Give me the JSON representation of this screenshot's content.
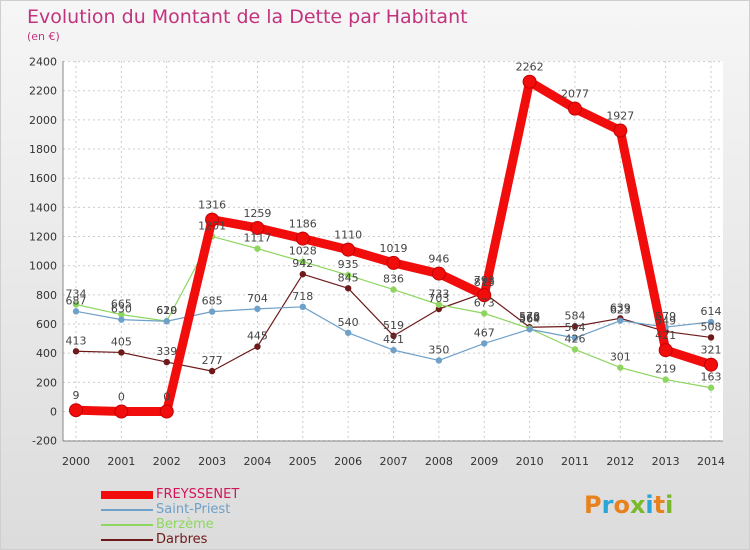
{
  "header": {
    "title": "Evolution du Montant de la Dette par Habitant",
    "subtitle": "(en €)"
  },
  "logo": {
    "text": "Proxiti",
    "colors": [
      "#e8821e",
      "#2aa5d8",
      "#e8821e",
      "#7ab929",
      "#2aa5d8",
      "#e8821e",
      "#7ab929"
    ]
  },
  "chart_data": {
    "type": "line",
    "title": "Evolution du Montant de la Dette par Habitant",
    "subtitle": "(en €)",
    "xlabel": "",
    "ylabel": "",
    "categories": [
      "2000",
      "2001",
      "2002",
      "2003",
      "2004",
      "2005",
      "2006",
      "2007",
      "2008",
      "2009",
      "2010",
      "2011",
      "2012",
      "2013",
      "2014"
    ],
    "ylim": [
      -200,
      2400
    ],
    "yticks": [
      -200,
      0,
      200,
      400,
      600,
      800,
      1000,
      1200,
      1400,
      1600,
      1800,
      2000,
      2200,
      2400
    ],
    "grid": true,
    "legend": "bottom-left",
    "series": [
      {
        "name": "Darbres",
        "color": "#6e1a1a",
        "values": [
          413,
          405,
          339,
          277,
          445,
          942,
          845,
          519,
          703,
          813,
          578,
          584,
          639,
          549,
          508
        ]
      },
      {
        "name": "Berzème",
        "color": "#8ed65f",
        "values": [
          734,
          665,
          620,
          1201,
          1117,
          1028,
          935,
          836,
          733,
          673,
          569,
          426,
          301,
          219,
          163
        ]
      },
      {
        "name": "Saint-Priest",
        "color": "#6fa0c8",
        "values": [
          687,
          630,
          619,
          685,
          704,
          718,
          540,
          421,
          350,
          467,
          564,
          504,
          623,
          579,
          614
        ]
      },
      {
        "name": "FREYSSENET",
        "color": "#f20d0d",
        "values": [
          9,
          0,
          0,
          1316,
          1259,
          1186,
          1110,
          1019,
          946,
          798,
          2262,
          2077,
          1927,
          421,
          321
        ]
      }
    ]
  }
}
